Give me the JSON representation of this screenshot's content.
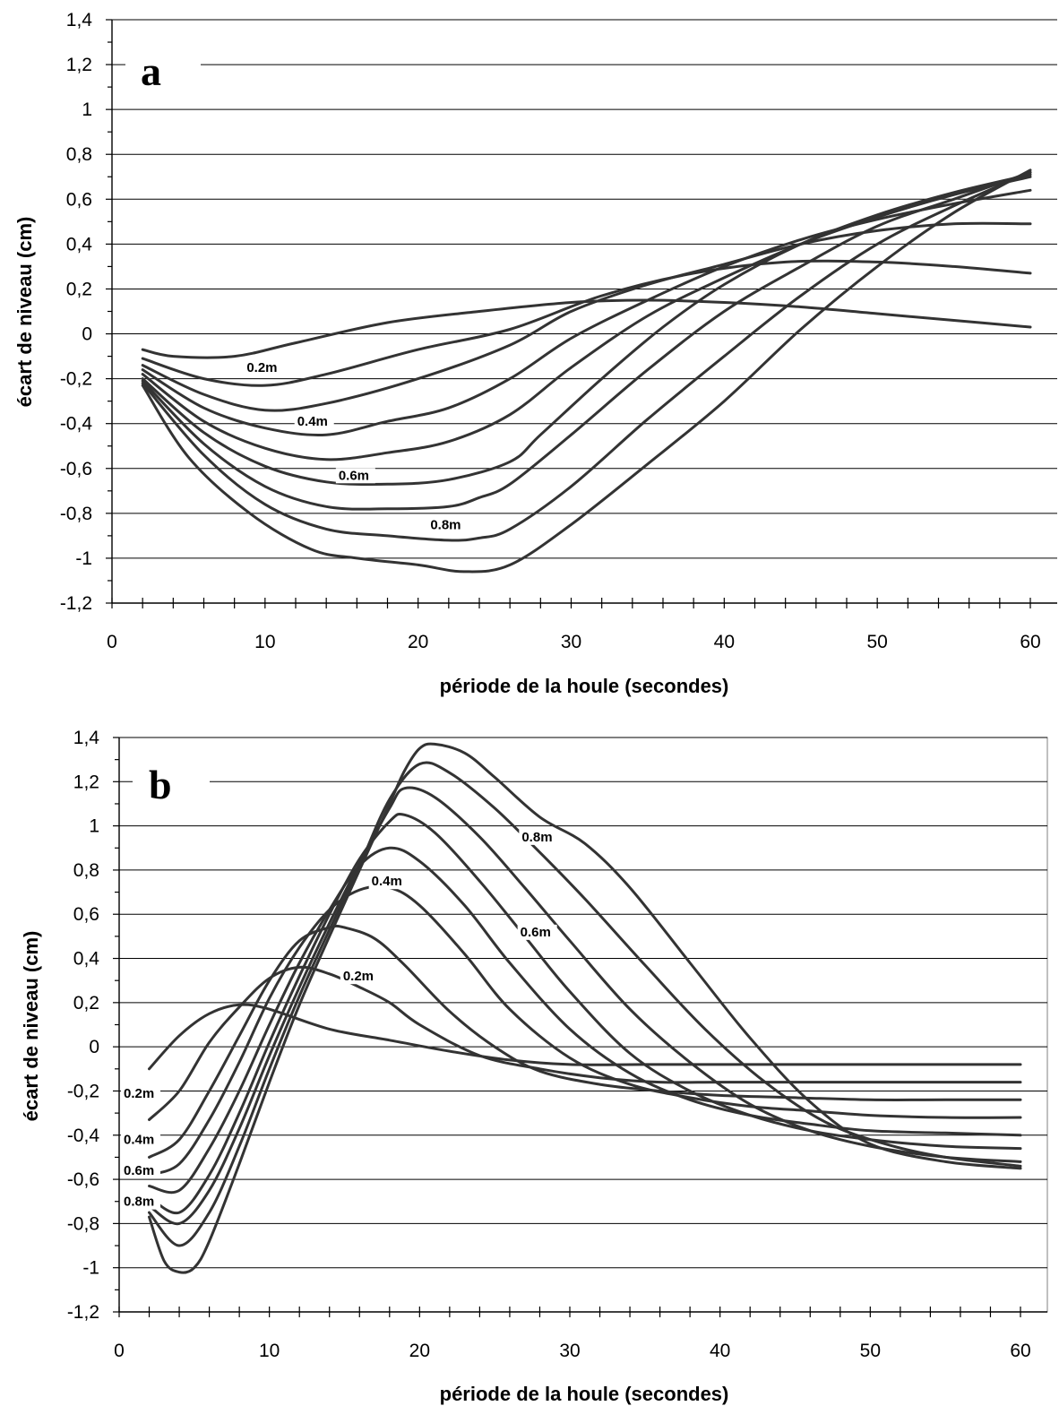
{
  "chart_data": [
    {
      "panel": "a",
      "type": "line",
      "xlabel": "période de la houle (secondes)",
      "ylabel": "écart de niveau (cm)",
      "xlim": [
        0,
        60
      ],
      "ylim": [
        -1.2,
        1.4
      ],
      "xticks": [
        "0",
        "10",
        "20",
        "30",
        "40",
        "50",
        "60"
      ],
      "yticks": [
        "1,4",
        "1,2",
        "1",
        "0,8",
        "0,6",
        "0,4",
        "0,2",
        "0",
        "-0,2",
        "-0,4",
        "-0,6",
        "-0,8",
        "-1",
        "-1,2"
      ],
      "grid": true,
      "curve_labels": [
        {
          "text": "0.2m",
          "x": 8.8,
          "y": -0.17
        },
        {
          "text": "0.4m",
          "x": 12.1,
          "y": -0.41
        },
        {
          "text": "0.6m",
          "x": 14.8,
          "y": -0.65
        },
        {
          "text": "0.8m",
          "x": 20.8,
          "y": -0.87
        }
      ],
      "series": [
        {
          "x": [
            2,
            4,
            8,
            12,
            18,
            24,
            30,
            35,
            40,
            45,
            50,
            55,
            60
          ],
          "values": [
            -0.07,
            -0.1,
            -0.1,
            -0.04,
            0.05,
            0.1,
            0.14,
            0.15,
            0.14,
            0.12,
            0.09,
            0.06,
            0.03
          ]
        },
        {
          "x": [
            2,
            6,
            10,
            14,
            20,
            26,
            32,
            38,
            44,
            50,
            55,
            60
          ],
          "values": [
            -0.11,
            -0.2,
            -0.23,
            -0.18,
            -0.07,
            0.02,
            0.17,
            0.27,
            0.32,
            0.32,
            0.3,
            0.27
          ]
        },
        {
          "x": [
            2,
            6,
            10,
            14,
            20,
            26,
            30,
            35,
            40,
            45,
            50,
            55,
            60
          ],
          "values": [
            -0.14,
            -0.27,
            -0.34,
            -0.31,
            -0.2,
            -0.05,
            0.1,
            0.22,
            0.31,
            0.4,
            0.46,
            0.49,
            0.49
          ]
        },
        {
          "x": [
            2,
            6,
            10,
            14,
            18,
            22,
            26,
            30,
            35,
            40,
            45,
            50,
            55,
            60
          ],
          "values": [
            -0.16,
            -0.33,
            -0.42,
            -0.45,
            -0.39,
            -0.33,
            -0.2,
            -0.02,
            0.15,
            0.3,
            0.42,
            0.51,
            0.58,
            0.64
          ]
        },
        {
          "x": [
            2,
            6,
            10,
            14,
            18,
            22,
            26,
            30,
            35,
            40,
            45,
            50,
            55,
            60
          ],
          "values": [
            -0.18,
            -0.39,
            -0.51,
            -0.56,
            -0.53,
            -0.48,
            -0.36,
            -0.15,
            0.08,
            0.25,
            0.4,
            0.52,
            0.62,
            0.7
          ]
        },
        {
          "x": [
            2,
            6,
            10,
            14,
            18,
            22,
            26,
            28,
            32,
            36,
            40,
            45,
            50,
            55,
            60
          ],
          "values": [
            -0.2,
            -0.44,
            -0.59,
            -0.66,
            -0.67,
            -0.65,
            -0.57,
            -0.45,
            -0.2,
            0.03,
            0.22,
            0.4,
            0.53,
            0.63,
            0.71
          ]
        },
        {
          "x": [
            2,
            6,
            10,
            14,
            18,
            22,
            24,
            26,
            30,
            35,
            40,
            45,
            50,
            55,
            60
          ],
          "values": [
            -0.21,
            -0.49,
            -0.68,
            -0.77,
            -0.78,
            -0.77,
            -0.73,
            -0.67,
            -0.45,
            -0.16,
            0.1,
            0.3,
            0.48,
            0.6,
            0.72
          ]
        },
        {
          "x": [
            2,
            6,
            10,
            14,
            18,
            22,
            24,
            26,
            30,
            35,
            40,
            45,
            50,
            55,
            60
          ],
          "values": [
            -0.22,
            -0.54,
            -0.76,
            -0.87,
            -0.9,
            -0.92,
            -0.91,
            -0.87,
            -0.68,
            -0.38,
            -0.1,
            0.17,
            0.4,
            0.57,
            0.72
          ]
        },
        {
          "x": [
            2,
            5,
            9,
            13,
            16,
            20,
            23,
            26,
            30,
            35,
            40,
            45,
            50,
            55,
            60
          ],
          "values": [
            -0.23,
            -0.55,
            -0.8,
            -0.96,
            -1.0,
            -1.03,
            -1.06,
            -1.03,
            -0.85,
            -0.58,
            -0.3,
            0.02,
            0.3,
            0.54,
            0.73
          ]
        }
      ]
    },
    {
      "panel": "b",
      "type": "line",
      "xlabel": "période de la houle (secondes)",
      "ylabel": "écart de niveau (cm)",
      "xlim": [
        0,
        60
      ],
      "ylim": [
        -1.2,
        1.4
      ],
      "xticks": [
        "0",
        "10",
        "20",
        "30",
        "40",
        "50",
        "60"
      ],
      "yticks": [
        "1,4",
        "1,2",
        "1",
        "0,8",
        "0,6",
        "0,4",
        "0,2",
        "0",
        "-0,2",
        "-0,4",
        "-0,6",
        "-0,8",
        "-1",
        "-1,2"
      ],
      "grid": true,
      "curve_labels": [
        {
          "text": "0.2m",
          "x": 0.3,
          "y": -0.23
        },
        {
          "text": "0.4m",
          "x": 0.3,
          "y": -0.44
        },
        {
          "text": "0.6m",
          "x": 0.3,
          "y": -0.58
        },
        {
          "text": "0.8m",
          "x": 0.3,
          "y": -0.72
        },
        {
          "text": "0.2m",
          "x": 14.9,
          "y": 0.3
        },
        {
          "text": "0.4m",
          "x": 16.8,
          "y": 0.73
        },
        {
          "text": "0.6m",
          "x": 26.7,
          "y": 0.5
        },
        {
          "text": "0.8m",
          "x": 26.8,
          "y": 0.93
        }
      ],
      "series": [
        {
          "x": [
            2,
            4,
            6,
            8,
            10,
            14,
            18,
            22,
            26,
            30,
            35,
            40,
            45,
            50,
            55,
            60
          ],
          "values": [
            -0.1,
            0.05,
            0.15,
            0.19,
            0.17,
            0.08,
            0.03,
            -0.02,
            -0.06,
            -0.08,
            -0.08,
            -0.08,
            -0.08,
            -0.08,
            -0.08,
            -0.08
          ]
        },
        {
          "x": [
            2,
            4,
            6,
            8,
            10,
            12,
            14,
            16,
            18,
            20,
            24,
            28,
            32,
            36,
            40,
            45,
            50,
            55,
            60
          ],
          "values": [
            -0.33,
            -0.2,
            0.02,
            0.18,
            0.31,
            0.36,
            0.33,
            0.27,
            0.2,
            0.1,
            -0.04,
            -0.1,
            -0.14,
            -0.16,
            -0.16,
            -0.16,
            -0.16,
            -0.16,
            -0.16
          ]
        },
        {
          "x": [
            2,
            4,
            6,
            8,
            10,
            12,
            14,
            15,
            17,
            19,
            22,
            25,
            28,
            32,
            36,
            40,
            45,
            50,
            55,
            60
          ],
          "values": [
            -0.5,
            -0.42,
            -0.2,
            0.05,
            0.3,
            0.48,
            0.54,
            0.54,
            0.49,
            0.37,
            0.16,
            0.0,
            -0.11,
            -0.17,
            -0.2,
            -0.22,
            -0.23,
            -0.24,
            -0.24,
            -0.24
          ]
        },
        {
          "x": [
            2,
            4,
            6,
            8,
            10,
            12,
            14,
            16,
            18,
            20,
            23,
            26,
            30,
            34,
            38,
            42,
            46,
            50,
            55,
            60
          ],
          "values": [
            -0.58,
            -0.53,
            -0.33,
            -0.07,
            0.22,
            0.45,
            0.62,
            0.71,
            0.72,
            0.64,
            0.42,
            0.17,
            -0.05,
            -0.17,
            -0.23,
            -0.27,
            -0.29,
            -0.31,
            -0.32,
            -0.32
          ]
        },
        {
          "x": [
            2,
            4,
            6,
            8,
            10,
            12,
            14,
            16,
            18,
            20,
            23,
            26,
            30,
            34,
            38,
            42,
            46,
            50,
            55,
            60
          ],
          "values": [
            -0.63,
            -0.65,
            -0.46,
            -0.2,
            0.1,
            0.38,
            0.62,
            0.82,
            0.9,
            0.84,
            0.64,
            0.38,
            0.08,
            -0.12,
            -0.24,
            -0.31,
            -0.35,
            -0.38,
            -0.39,
            -0.4
          ]
        },
        {
          "x": [
            2,
            4,
            6,
            8,
            10,
            12,
            14,
            16,
            18,
            19,
            21,
            24,
            27,
            30,
            34,
            38,
            42,
            46,
            50,
            55,
            60
          ],
          "values": [
            -0.68,
            -0.75,
            -0.58,
            -0.3,
            0.02,
            0.32,
            0.6,
            0.85,
            1.02,
            1.05,
            0.97,
            0.75,
            0.5,
            0.25,
            -0.03,
            -0.2,
            -0.31,
            -0.38,
            -0.42,
            -0.45,
            -0.46
          ]
        },
        {
          "x": [
            2,
            4,
            6,
            8,
            10,
            12,
            14,
            16,
            18,
            19,
            21,
            24,
            27,
            30,
            34,
            38,
            42,
            46,
            50,
            55,
            60
          ],
          "values": [
            -0.72,
            -0.8,
            -0.65,
            -0.37,
            -0.04,
            0.27,
            0.56,
            0.83,
            1.08,
            1.17,
            1.13,
            0.95,
            0.72,
            0.48,
            0.17,
            -0.07,
            -0.26,
            -0.38,
            -0.45,
            -0.5,
            -0.52
          ]
        },
        {
          "x": [
            2,
            4,
            6,
            8,
            10,
            12,
            14,
            16,
            18,
            20,
            22,
            25,
            28,
            31,
            35,
            39,
            43,
            47,
            51,
            55,
            60
          ],
          "values": [
            -0.75,
            -0.9,
            -0.75,
            -0.45,
            -0.1,
            0.23,
            0.53,
            0.82,
            1.12,
            1.28,
            1.24,
            1.08,
            0.88,
            0.67,
            0.37,
            0.08,
            -0.16,
            -0.34,
            -0.44,
            -0.5,
            -0.54
          ]
        },
        {
          "x": [
            2,
            3,
            4,
            5,
            6,
            8,
            10,
            12,
            14,
            16,
            18,
            19,
            20,
            21,
            23,
            25,
            28,
            31,
            34,
            38,
            42,
            46,
            50,
            55,
            60
          ],
          "values": [
            -0.77,
            -0.97,
            -1.02,
            -1.0,
            -0.88,
            -0.53,
            -0.16,
            0.19,
            0.5,
            0.8,
            1.1,
            1.25,
            1.35,
            1.37,
            1.33,
            1.22,
            1.04,
            0.92,
            0.72,
            0.38,
            0.04,
            -0.25,
            -0.44,
            -0.52,
            -0.55
          ]
        }
      ]
    }
  ]
}
